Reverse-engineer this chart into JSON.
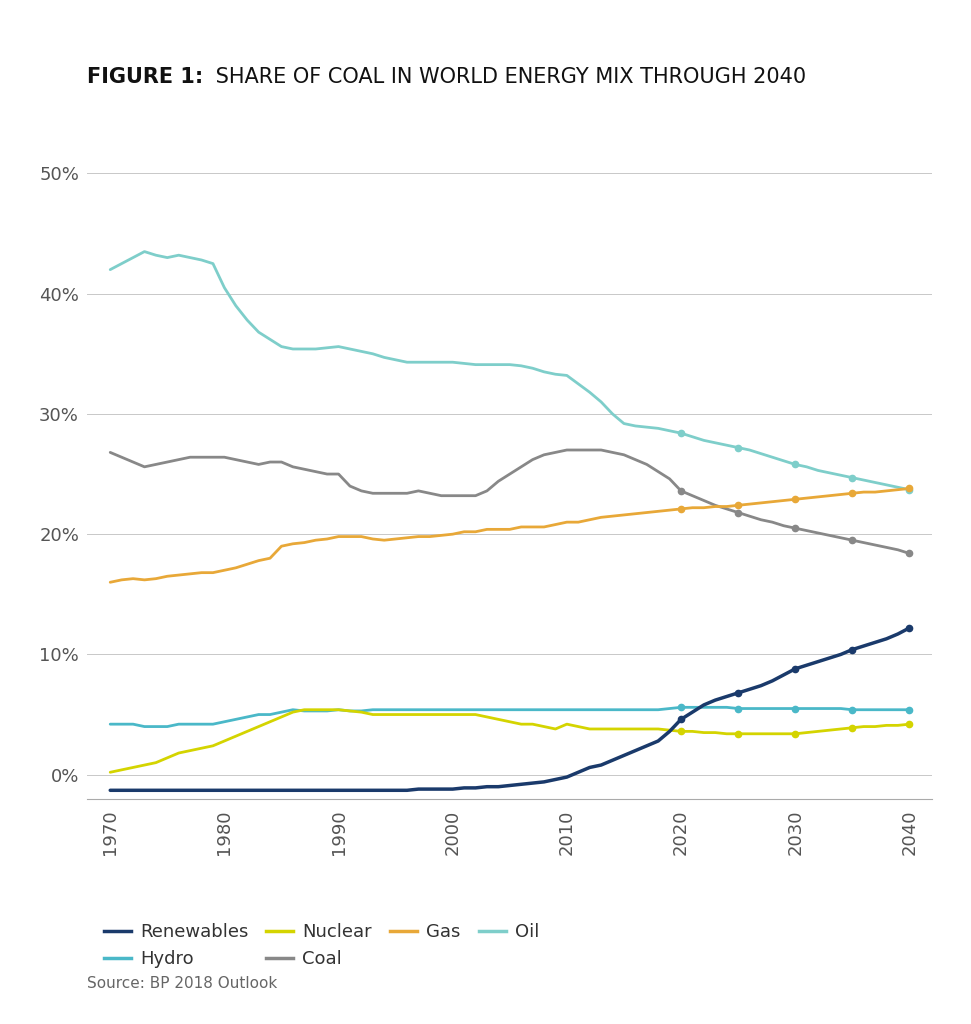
{
  "title_bold": "FIGURE 1:",
  "title_regular": " SHARE OF COAL IN WORLD ENERGY MIX THROUGH 2040",
  "source": "Source: BP 2018 Outlook",
  "background_color": "#ffffff",
  "grid_color": "#c8c8c8",
  "ylim": [
    -0.02,
    0.525
  ],
  "yticks": [
    0.0,
    0.1,
    0.2,
    0.3,
    0.4,
    0.5
  ],
  "ytick_labels": [
    "0%",
    "10%",
    "20%",
    "30%",
    "40%",
    "50%"
  ],
  "xlim": [
    1968,
    2042
  ],
  "xticks": [
    1970,
    1980,
    1990,
    2000,
    2010,
    2020,
    2030,
    2040
  ],
  "series": {
    "Oil": {
      "color": "#7ececa",
      "linewidth": 2.0,
      "years": [
        1970,
        1971,
        1972,
        1973,
        1974,
        1975,
        1976,
        1977,
        1978,
        1979,
        1980,
        1981,
        1982,
        1983,
        1984,
        1985,
        1986,
        1987,
        1988,
        1989,
        1990,
        1991,
        1992,
        1993,
        1994,
        1995,
        1996,
        1997,
        1998,
        1999,
        2000,
        2001,
        2002,
        2003,
        2004,
        2005,
        2006,
        2007,
        2008,
        2009,
        2010,
        2011,
        2012,
        2013,
        2014,
        2015,
        2016,
        2017,
        2018,
        2019,
        2020,
        2021,
        2022,
        2023,
        2024,
        2025,
        2026,
        2027,
        2028,
        2029,
        2030,
        2031,
        2032,
        2033,
        2034,
        2035,
        2036,
        2037,
        2038,
        2039,
        2040
      ],
      "values": [
        0.42,
        0.425,
        0.43,
        0.435,
        0.432,
        0.43,
        0.432,
        0.43,
        0.428,
        0.425,
        0.405,
        0.39,
        0.378,
        0.368,
        0.362,
        0.356,
        0.354,
        0.354,
        0.354,
        0.355,
        0.356,
        0.354,
        0.352,
        0.35,
        0.347,
        0.345,
        0.343,
        0.343,
        0.343,
        0.343,
        0.343,
        0.342,
        0.341,
        0.341,
        0.341,
        0.341,
        0.34,
        0.338,
        0.335,
        0.333,
        0.332,
        0.325,
        0.318,
        0.31,
        0.3,
        0.292,
        0.29,
        0.289,
        0.288,
        0.286,
        0.284,
        0.281,
        0.278,
        0.276,
        0.274,
        0.272,
        0.27,
        0.267,
        0.264,
        0.261,
        0.258,
        0.256,
        0.253,
        0.251,
        0.249,
        0.247,
        0.245,
        0.243,
        0.241,
        0.239,
        0.237
      ]
    },
    "Coal": {
      "color": "#888888",
      "linewidth": 2.0,
      "years": [
        1970,
        1971,
        1972,
        1973,
        1974,
        1975,
        1976,
        1977,
        1978,
        1979,
        1980,
        1981,
        1982,
        1983,
        1984,
        1985,
        1986,
        1987,
        1988,
        1989,
        1990,
        1991,
        1992,
        1993,
        1994,
        1995,
        1996,
        1997,
        1998,
        1999,
        2000,
        2001,
        2002,
        2003,
        2004,
        2005,
        2006,
        2007,
        2008,
        2009,
        2010,
        2011,
        2012,
        2013,
        2014,
        2015,
        2016,
        2017,
        2018,
        2019,
        2020,
        2021,
        2022,
        2023,
        2024,
        2025,
        2026,
        2027,
        2028,
        2029,
        2030,
        2031,
        2032,
        2033,
        2034,
        2035,
        2036,
        2037,
        2038,
        2039,
        2040
      ],
      "values": [
        0.268,
        0.264,
        0.26,
        0.256,
        0.258,
        0.26,
        0.262,
        0.264,
        0.264,
        0.264,
        0.264,
        0.262,
        0.26,
        0.258,
        0.26,
        0.26,
        0.256,
        0.254,
        0.252,
        0.25,
        0.25,
        0.24,
        0.236,
        0.234,
        0.234,
        0.234,
        0.234,
        0.236,
        0.234,
        0.232,
        0.232,
        0.232,
        0.232,
        0.236,
        0.244,
        0.25,
        0.256,
        0.262,
        0.266,
        0.268,
        0.27,
        0.27,
        0.27,
        0.27,
        0.268,
        0.266,
        0.262,
        0.258,
        0.252,
        0.246,
        0.236,
        0.232,
        0.228,
        0.224,
        0.221,
        0.218,
        0.215,
        0.212,
        0.21,
        0.207,
        0.205,
        0.203,
        0.201,
        0.199,
        0.197,
        0.195,
        0.193,
        0.191,
        0.189,
        0.187,
        0.184
      ]
    },
    "Gas": {
      "color": "#e8a838",
      "linewidth": 2.0,
      "years": [
        1970,
        1971,
        1972,
        1973,
        1974,
        1975,
        1976,
        1977,
        1978,
        1979,
        1980,
        1981,
        1982,
        1983,
        1984,
        1985,
        1986,
        1987,
        1988,
        1989,
        1990,
        1991,
        1992,
        1993,
        1994,
        1995,
        1996,
        1997,
        1998,
        1999,
        2000,
        2001,
        2002,
        2003,
        2004,
        2005,
        2006,
        2007,
        2008,
        2009,
        2010,
        2011,
        2012,
        2013,
        2014,
        2015,
        2016,
        2017,
        2018,
        2019,
        2020,
        2021,
        2022,
        2023,
        2024,
        2025,
        2026,
        2027,
        2028,
        2029,
        2030,
        2031,
        2032,
        2033,
        2034,
        2035,
        2036,
        2037,
        2038,
        2039,
        2040
      ],
      "values": [
        0.16,
        0.162,
        0.163,
        0.162,
        0.163,
        0.165,
        0.166,
        0.167,
        0.168,
        0.168,
        0.17,
        0.172,
        0.175,
        0.178,
        0.18,
        0.19,
        0.192,
        0.193,
        0.195,
        0.196,
        0.198,
        0.198,
        0.198,
        0.196,
        0.195,
        0.196,
        0.197,
        0.198,
        0.198,
        0.199,
        0.2,
        0.202,
        0.202,
        0.204,
        0.204,
        0.204,
        0.206,
        0.206,
        0.206,
        0.208,
        0.21,
        0.21,
        0.212,
        0.214,
        0.215,
        0.216,
        0.217,
        0.218,
        0.219,
        0.22,
        0.221,
        0.222,
        0.222,
        0.223,
        0.223,
        0.224,
        0.225,
        0.226,
        0.227,
        0.228,
        0.229,
        0.23,
        0.231,
        0.232,
        0.233,
        0.234,
        0.235,
        0.235,
        0.236,
        0.237,
        0.238
      ]
    },
    "Hydro": {
      "color": "#4ab8c8",
      "linewidth": 2.0,
      "years": [
        1970,
        1971,
        1972,
        1973,
        1974,
        1975,
        1976,
        1977,
        1978,
        1979,
        1980,
        1981,
        1982,
        1983,
        1984,
        1985,
        1986,
        1987,
        1988,
        1989,
        1990,
        1991,
        1992,
        1993,
        1994,
        1995,
        1996,
        1997,
        1998,
        1999,
        2000,
        2001,
        2002,
        2003,
        2004,
        2005,
        2006,
        2007,
        2008,
        2009,
        2010,
        2011,
        2012,
        2013,
        2014,
        2015,
        2016,
        2017,
        2018,
        2019,
        2020,
        2021,
        2022,
        2023,
        2024,
        2025,
        2026,
        2027,
        2028,
        2029,
        2030,
        2031,
        2032,
        2033,
        2034,
        2035,
        2036,
        2037,
        2038,
        2039,
        2040
      ],
      "values": [
        0.042,
        0.042,
        0.042,
        0.04,
        0.04,
        0.04,
        0.042,
        0.042,
        0.042,
        0.042,
        0.044,
        0.046,
        0.048,
        0.05,
        0.05,
        0.052,
        0.054,
        0.053,
        0.053,
        0.053,
        0.054,
        0.053,
        0.053,
        0.054,
        0.054,
        0.054,
        0.054,
        0.054,
        0.054,
        0.054,
        0.054,
        0.054,
        0.054,
        0.054,
        0.054,
        0.054,
        0.054,
        0.054,
        0.054,
        0.054,
        0.054,
        0.054,
        0.054,
        0.054,
        0.054,
        0.054,
        0.054,
        0.054,
        0.054,
        0.055,
        0.056,
        0.056,
        0.056,
        0.056,
        0.056,
        0.055,
        0.055,
        0.055,
        0.055,
        0.055,
        0.055,
        0.055,
        0.055,
        0.055,
        0.055,
        0.054,
        0.054,
        0.054,
        0.054,
        0.054,
        0.054
      ]
    },
    "Nuclear": {
      "color": "#d4d400",
      "linewidth": 2.0,
      "years": [
        1970,
        1971,
        1972,
        1973,
        1974,
        1975,
        1976,
        1977,
        1978,
        1979,
        1980,
        1981,
        1982,
        1983,
        1984,
        1985,
        1986,
        1987,
        1988,
        1989,
        1990,
        1991,
        1992,
        1993,
        1994,
        1995,
        1996,
        1997,
        1998,
        1999,
        2000,
        2001,
        2002,
        2003,
        2004,
        2005,
        2006,
        2007,
        2008,
        2009,
        2010,
        2011,
        2012,
        2013,
        2014,
        2015,
        2016,
        2017,
        2018,
        2019,
        2020,
        2021,
        2022,
        2023,
        2024,
        2025,
        2026,
        2027,
        2028,
        2029,
        2030,
        2031,
        2032,
        2033,
        2034,
        2035,
        2036,
        2037,
        2038,
        2039,
        2040
      ],
      "values": [
        0.002,
        0.004,
        0.006,
        0.008,
        0.01,
        0.014,
        0.018,
        0.02,
        0.022,
        0.024,
        0.028,
        0.032,
        0.036,
        0.04,
        0.044,
        0.048,
        0.052,
        0.054,
        0.054,
        0.054,
        0.054,
        0.053,
        0.052,
        0.05,
        0.05,
        0.05,
        0.05,
        0.05,
        0.05,
        0.05,
        0.05,
        0.05,
        0.05,
        0.048,
        0.046,
        0.044,
        0.042,
        0.042,
        0.04,
        0.038,
        0.042,
        0.04,
        0.038,
        0.038,
        0.038,
        0.038,
        0.038,
        0.038,
        0.038,
        0.037,
        0.036,
        0.036,
        0.035,
        0.035,
        0.034,
        0.034,
        0.034,
        0.034,
        0.034,
        0.034,
        0.034,
        0.035,
        0.036,
        0.037,
        0.038,
        0.039,
        0.04,
        0.04,
        0.041,
        0.041,
        0.042
      ]
    },
    "Renewables": {
      "color": "#1a3a6b",
      "linewidth": 2.5,
      "years": [
        1970,
        1971,
        1972,
        1973,
        1974,
        1975,
        1976,
        1977,
        1978,
        1979,
        1980,
        1981,
        1982,
        1983,
        1984,
        1985,
        1986,
        1987,
        1988,
        1989,
        1990,
        1991,
        1992,
        1993,
        1994,
        1995,
        1996,
        1997,
        1998,
        1999,
        2000,
        2001,
        2002,
        2003,
        2004,
        2005,
        2006,
        2007,
        2008,
        2009,
        2010,
        2011,
        2012,
        2013,
        2014,
        2015,
        2016,
        2017,
        2018,
        2019,
        2020,
        2021,
        2022,
        2023,
        2024,
        2025,
        2026,
        2027,
        2028,
        2029,
        2030,
        2031,
        2032,
        2033,
        2034,
        2035,
        2036,
        2037,
        2038,
        2039,
        2040
      ],
      "values": [
        -0.013,
        -0.013,
        -0.013,
        -0.013,
        -0.013,
        -0.013,
        -0.013,
        -0.013,
        -0.013,
        -0.013,
        -0.013,
        -0.013,
        -0.013,
        -0.013,
        -0.013,
        -0.013,
        -0.013,
        -0.013,
        -0.013,
        -0.013,
        -0.013,
        -0.013,
        -0.013,
        -0.013,
        -0.013,
        -0.013,
        -0.013,
        -0.012,
        -0.012,
        -0.012,
        -0.012,
        -0.011,
        -0.011,
        -0.01,
        -0.01,
        -0.009,
        -0.008,
        -0.007,
        -0.006,
        -0.004,
        -0.002,
        0.002,
        0.006,
        0.008,
        0.012,
        0.016,
        0.02,
        0.024,
        0.028,
        0.036,
        0.046,
        0.052,
        0.058,
        0.062,
        0.065,
        0.068,
        0.071,
        0.074,
        0.078,
        0.083,
        0.088,
        0.091,
        0.094,
        0.097,
        0.1,
        0.104,
        0.107,
        0.11,
        0.113,
        0.117,
        0.122
      ]
    }
  },
  "legend_order": [
    "Renewables",
    "Hydro",
    "Nuclear",
    "Coal",
    "Gas",
    "Oil"
  ],
  "future_dot_years": [
    2020,
    2025,
    2030,
    2035,
    2040
  ],
  "dot_series": [
    "Oil",
    "Coal",
    "Gas",
    "Hydro",
    "Nuclear",
    "Renewables"
  ]
}
